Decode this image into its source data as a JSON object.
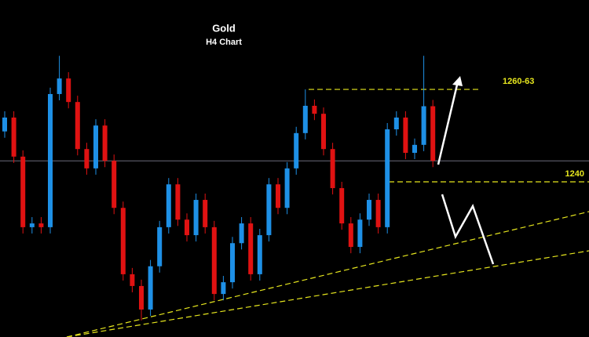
{
  "chart_data": {
    "type": "candlestick",
    "title": "Gold",
    "subtitle": "H4 Chart",
    "ylim": [
      1200,
      1280
    ],
    "up_color": "#1e90e6",
    "down_color": "#e01212",
    "level_color": "#e6e61e",
    "current_price": 1245,
    "levels": [
      {
        "value": 1262,
        "label": "1260-63"
      },
      {
        "value": 1240,
        "label": "1240"
      }
    ],
    "open": [
      1252,
      1255.3,
      1246,
      1229.2,
      1230.1,
      1229.2,
      1260.9,
      1264.6,
      1259,
      1247.8,
      1243.2,
      1253.4,
      1245,
      1233.8,
      1218,
      1215.2,
      1209.6,
      1219.9,
      1229.2,
      1239.4,
      1231,
      1227.3,
      1235.7,
      1229.2,
      1213.3,
      1216.1,
      1225.4,
      1230.1,
      1218,
      1227.3,
      1239.4,
      1233.8,
      1243.2,
      1251.6,
      1258.1,
      1256.2,
      1247.8,
      1238.5,
      1230.1,
      1224.5,
      1231,
      1235.7,
      1229.2,
      1252.5,
      1255.3,
      1246.9,
      1248.8,
      1258
    ],
    "high": [
      1256.8,
      1256.8,
      1247.5,
      1231.6,
      1231.6,
      1262.4,
      1270,
      1266.1,
      1260.5,
      1249.3,
      1254.9,
      1254.9,
      1246.5,
      1235.3,
      1219.5,
      1216.7,
      1221.4,
      1230.7,
      1240.9,
      1240.9,
      1232.5,
      1237.2,
      1237.2,
      1230.7,
      1217.6,
      1226.9,
      1231.6,
      1231.6,
      1228.8,
      1240.9,
      1240.9,
      1244.7,
      1253.1,
      1262,
      1259.6,
      1257.7,
      1249.3,
      1240,
      1231.6,
      1232.5,
      1237.2,
      1237.2,
      1254,
      1256.8,
      1256.8,
      1250.3,
      1270,
      1259.5
    ],
    "low": [
      1250.5,
      1244.5,
      1227.7,
      1227.7,
      1227.7,
      1227.7,
      1259.4,
      1257.5,
      1246.3,
      1241.7,
      1241.7,
      1243.5,
      1232.3,
      1216.5,
      1213.7,
      1207,
      1208.1,
      1218.4,
      1227.7,
      1229.5,
      1225.8,
      1225.8,
      1227.7,
      1211.8,
      1211.8,
      1214.6,
      1223.9,
      1216.5,
      1216.5,
      1225.8,
      1232.3,
      1232.3,
      1241.7,
      1250.1,
      1254.7,
      1246.3,
      1237,
      1228.6,
      1223,
      1223,
      1229.5,
      1227.7,
      1227.7,
      1251,
      1245.4,
      1245.4,
      1247.3,
      1243.5
    ],
    "close": [
      1255.3,
      1246,
      1229.2,
      1230.1,
      1229.2,
      1260.9,
      1264.6,
      1259,
      1247.8,
      1243.2,
      1253.4,
      1245,
      1233.8,
      1218,
      1215.2,
      1209.6,
      1219.9,
      1229.2,
      1239.4,
      1231,
      1227.3,
      1235.7,
      1229.2,
      1213.3,
      1216.1,
      1225.4,
      1230.1,
      1218,
      1227.3,
      1239.4,
      1233.8,
      1243.2,
      1251.6,
      1258.1,
      1256.2,
      1247.8,
      1238.5,
      1230.1,
      1224.5,
      1231,
      1235.7,
      1229.2,
      1252.5,
      1255.3,
      1246.9,
      1248.8,
      1258,
      1245
    ]
  }
}
